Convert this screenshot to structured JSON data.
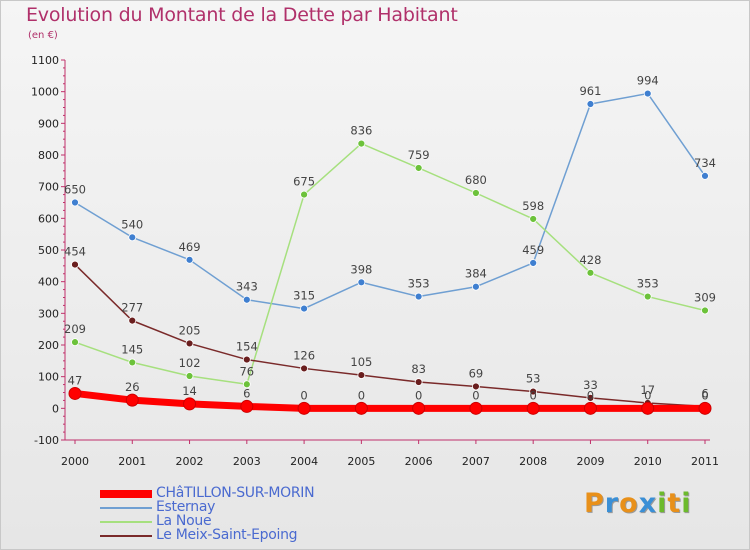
{
  "title": "Evolution du Montant de la Dette par Habitant",
  "unit": "(en €)",
  "logo": {
    "letters": [
      "P",
      "r",
      "o",
      "x",
      "i",
      "t",
      "i"
    ],
    "colors": [
      "#e8901a",
      "#3a8fd6",
      "#e8901a",
      "#3a8fd6",
      "#6cba2c",
      "#e8901a",
      "#6cba2c"
    ]
  },
  "chart_data": {
    "type": "line",
    "x": [
      "2000",
      "2001",
      "2002",
      "2003",
      "2004",
      "2005",
      "2006",
      "2007",
      "2008",
      "2009",
      "2010",
      "2011"
    ],
    "ylim": [
      -100,
      1100
    ],
    "yticks": [
      "-100",
      "0",
      "100",
      "200",
      "300",
      "400",
      "500",
      "600",
      "700",
      "800",
      "900",
      "1000",
      "1100"
    ],
    "grid": false,
    "legend_position": "bottom-left",
    "series": [
      {
        "name": "CHâTILLON-SUR-MORIN",
        "color": "#ff0000",
        "values": [
          47,
          26,
          14,
          6,
          0,
          0,
          0,
          0,
          0,
          0,
          0,
          0
        ],
        "labels": [
          "47",
          "26",
          "14",
          "6",
          "0",
          "0",
          "0",
          "0",
          "0",
          "0",
          "0",
          "0"
        ]
      },
      {
        "name": "Esternay",
        "color": "#6f9fd2",
        "marker": "#3f7fd0",
        "values": [
          650,
          540,
          469,
          343,
          315,
          398,
          353,
          384,
          459,
          961,
          994,
          734
        ],
        "labels": [
          "650",
          "540",
          "469",
          "343",
          "315",
          "398",
          "353",
          "384",
          "459",
          "961",
          "994",
          "734"
        ]
      },
      {
        "name": "La Noue",
        "color": "#a6e07e",
        "marker": "#6cc23a",
        "values": [
          209,
          145,
          102,
          76,
          675,
          836,
          759,
          680,
          598,
          428,
          353,
          309
        ],
        "labels": [
          "209",
          "145",
          "102",
          "76",
          "675",
          "836",
          "759",
          "680",
          "598",
          "428",
          "353",
          "309"
        ]
      },
      {
        "name": "Le Meix-Saint-Epoing",
        "color": "#7a2a2a",
        "marker": "#6a1e1e",
        "values": [
          454,
          277,
          205,
          154,
          126,
          105,
          83,
          69,
          53,
          33,
          17,
          6
        ],
        "labels": [
          "454",
          "277",
          "205",
          "154",
          "126",
          "105",
          "83",
          "69",
          "53",
          "33",
          "17",
          "6"
        ]
      }
    ]
  }
}
